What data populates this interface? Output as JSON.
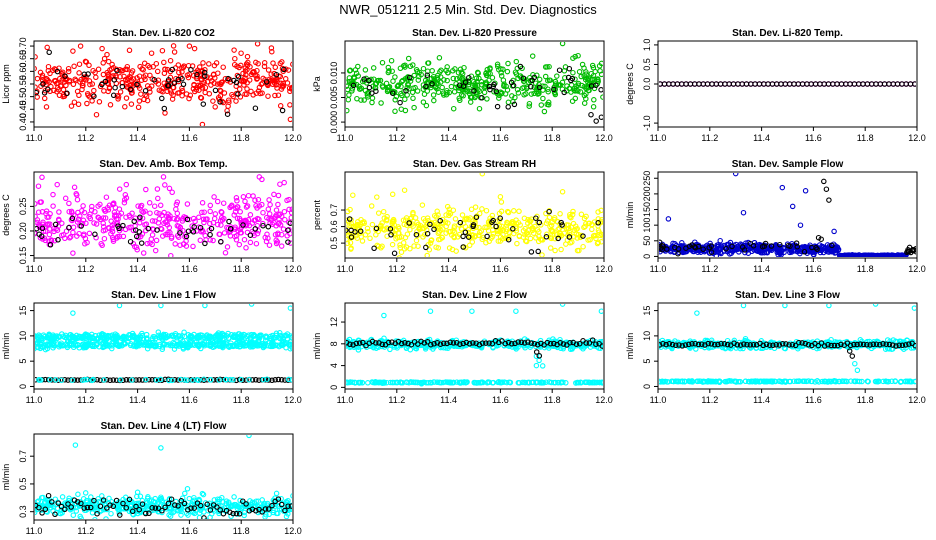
{
  "figure": {
    "title": "NWR_051211  2.5 Min. Std. Dev. Diagnostics"
  },
  "chart_data": [
    {
      "type": "scatter",
      "title": "Stan. Dev. Li-820 CO2",
      "xlabel": "",
      "ylabel": "Licor ppm",
      "xlim": [
        11.0,
        12.0
      ],
      "ylim": [
        0.38,
        0.72
      ],
      "xticks": [
        "11.0",
        "11.2",
        "11.4",
        "11.6",
        "11.8",
        "12.0"
      ],
      "yticks": [
        "0.40",
        "0.45",
        "0.50",
        "0.55",
        "0.60",
        "0.65",
        "0.70"
      ],
      "series": [
        {
          "name": "main",
          "color": "#ff0000",
          "n": 450,
          "center": 0.56,
          "spread": 0.05,
          "outliers": [
            [
              11.18,
              0.7
            ],
            [
              11.6,
              0.7
            ],
            [
              11.62,
              0.69
            ],
            [
              11.65,
              0.39
            ],
            [
              11.99,
              0.41
            ],
            [
              11.15,
              0.68
            ]
          ]
        },
        {
          "name": "highlight",
          "color": "#000000",
          "n": 50,
          "center": 0.55,
          "spread": 0.05,
          "outliers": []
        }
      ]
    },
    {
      "type": "scatter",
      "title": "Stan. Dev. Li-820 Pressure",
      "xlabel": "",
      "ylabel": "kPa",
      "xlim": [
        11.0,
        12.0
      ],
      "ylim": [
        -0.001,
        0.0165
      ],
      "xticks": [
        "11.0",
        "11.2",
        "11.4",
        "11.6",
        "11.8",
        "12.0"
      ],
      "yticks": [
        "0.000",
        "0.005",
        "0.010"
      ],
      "series": [
        {
          "name": "main",
          "color": "#00bb00",
          "n": 450,
          "center": 0.0075,
          "spread": 0.002,
          "outliers": [
            [
              11.18,
              0.0125
            ],
            [
              11.32,
              0.012
            ],
            [
              11.9,
              0.0135
            ],
            [
              11.88,
              0.013
            ],
            [
              11.84,
              0.016
            ],
            [
              11.56,
              0.011
            ]
          ]
        },
        {
          "name": "highlight",
          "color": "#000000",
          "n": 45,
          "center": 0.0075,
          "spread": 0.0018,
          "outliers": [
            [
              11.97,
              0.0002
            ],
            [
              11.95,
              0.0015
            ],
            [
              11.99,
              0.001
            ]
          ]
        }
      ]
    },
    {
      "type": "scatter",
      "title": "Stan. Dev. Li-820 Temp.",
      "xlabel": "",
      "ylabel": "degrees C",
      "xlim": [
        11.0,
        12.0
      ],
      "ylim": [
        -1.1,
        1.1
      ],
      "xticks": [
        "11.0",
        "11.2",
        "11.4",
        "11.6",
        "11.8",
        "12.0"
      ],
      "yticks": [
        "-1.0",
        "0.0",
        "0.5",
        "1.0"
      ],
      "series": [
        {
          "name": "main",
          "color": "#ff00ff",
          "n": 60,
          "center": 0.0,
          "spread": 0.0,
          "outliers": [],
          "regular": true
        },
        {
          "name": "highlight",
          "color": "#000000",
          "n": 60,
          "center": 0.0,
          "spread": 0.0,
          "outliers": [],
          "regular": true
        }
      ]
    },
    {
      "type": "scatter",
      "title": "Stan. Dev. Amb. Box Temp.",
      "xlabel": "",
      "ylabel": "degrees C",
      "xlim": [
        11.0,
        12.0
      ],
      "ylim": [
        0.145,
        0.32
      ],
      "xticks": [
        "11.0",
        "11.2",
        "11.4",
        "11.6",
        "11.8",
        "12.0"
      ],
      "yticks": [
        "0.15",
        "0.20",
        "0.25"
      ],
      "series": [
        {
          "name": "main",
          "color": "#ff00ff",
          "n": 450,
          "center": 0.22,
          "spread": 0.03,
          "outliers": [
            [
              11.5,
              0.31
            ],
            [
              11.87,
              0.31
            ],
            [
              11.88,
              0.305
            ],
            [
              11.47,
              0.16
            ],
            [
              11.15,
              0.155
            ]
          ]
        },
        {
          "name": "highlight",
          "color": "#000000",
          "n": 45,
          "center": 0.2,
          "spread": 0.015,
          "outliers": []
        }
      ]
    },
    {
      "type": "scatter",
      "title": "Stan. Dev. Gas Stream RH",
      "xlabel": "",
      "ylabel": "percent",
      "xlim": [
        11.0,
        12.0
      ],
      "ylim": [
        0.41,
        0.93
      ],
      "xticks": [
        "11.0",
        "11.2",
        "11.4",
        "11.6",
        "11.8",
        "12.0"
      ],
      "yticks": [
        "0.5",
        "0.6",
        "0.7"
      ],
      "series": [
        {
          "name": "main",
          "color": "#ffff00",
          "n": 450,
          "center": 0.58,
          "spread": 0.06,
          "outliers": [
            [
              11.53,
              0.92
            ],
            [
              11.23,
              0.82
            ],
            [
              11.03,
              0.79
            ],
            [
              11.84,
              0.81
            ],
            [
              11.6,
              0.78
            ]
          ]
        },
        {
          "name": "highlight",
          "color": "#000000",
          "n": 45,
          "center": 0.57,
          "spread": 0.06,
          "outliers": []
        }
      ]
    },
    {
      "type": "scatter",
      "title": "Stan. Dev. Sample Flow",
      "xlabel": "",
      "ylabel": "ml/min",
      "xlim": [
        11.0,
        12.0
      ],
      "ylim": [
        -5,
        270
      ],
      "xticks": [
        "11.0",
        "11.2",
        "11.4",
        "11.6",
        "11.8",
        "12.0"
      ],
      "yticks": [
        "0",
        "50",
        "100",
        "150",
        "200",
        "250"
      ],
      "series": [
        {
          "name": "main",
          "color": "#0000cc",
          "n": 450,
          "center": 25,
          "spread": 8,
          "xmax": 11.7,
          "outliers": [
            [
              11.3,
              265
            ],
            [
              11.48,
              220
            ],
            [
              11.57,
              210
            ],
            [
              11.04,
              120
            ],
            [
              11.52,
              160
            ],
            [
              11.33,
              140
            ],
            [
              11.68,
              80
            ],
            [
              11.55,
              100
            ]
          ]
        },
        {
          "name": "tail",
          "color": "#0000cc",
          "n": 80,
          "center": 3,
          "spread": 1,
          "xmin": 11.7,
          "xmax": 11.96,
          "outliers": [],
          "regular": true
        },
        {
          "name": "highlight",
          "color": "#000000",
          "n": 40,
          "center": 30,
          "spread": 10,
          "xmax": 11.7,
          "outliers": [
            [
              11.64,
              240
            ],
            [
              11.65,
              215
            ],
            [
              11.66,
              180
            ],
            [
              11.62,
              60
            ],
            [
              11.63,
              55
            ]
          ]
        },
        {
          "name": "tail2",
          "color": "#000000",
          "n": 12,
          "center": 18,
          "spread": 4,
          "xmin": 11.96,
          "xmax": 12.0,
          "outliers": []
        }
      ]
    },
    {
      "type": "scatter",
      "title": "Stan. Dev. Line 1 Flow",
      "xlabel": "",
      "ylabel": "ml/min",
      "xlim": [
        11.0,
        12.0
      ],
      "ylim": [
        -0.5,
        16.5
      ],
      "xticks": [
        "11.0",
        "11.2",
        "11.4",
        "11.6",
        "11.8",
        "12.0"
      ],
      "yticks": [
        "0",
        "5",
        "10",
        "15"
      ],
      "series": [
        {
          "name": "band-upper",
          "color": "#00ffff",
          "n": 350,
          "center": 9.8,
          "spread": 0.3,
          "outliers": [
            [
              11.15,
              14.5
            ],
            [
              11.33,
              16
            ],
            [
              11.49,
              16
            ],
            [
              11.66,
              16
            ],
            [
              11.84,
              16.3
            ],
            [
              11.99,
              15.5
            ]
          ]
        },
        {
          "name": "band-lower",
          "color": "#00ffff",
          "n": 350,
          "center": 8.2,
          "spread": 0.3,
          "outliers": []
        },
        {
          "name": "baseline",
          "color": "#000000",
          "n": 80,
          "center": 1.3,
          "spread": 0.05,
          "outliers": [],
          "regular": true
        },
        {
          "name": "baseline-cyan",
          "color": "#00ffff",
          "n": 40,
          "center": 1.3,
          "spread": 0.05,
          "outliers": []
        }
      ]
    },
    {
      "type": "scatter",
      "title": "Stan. Dev. Line 2 Flow",
      "xlabel": "",
      "ylabel": "ml/min",
      "xlim": [
        11.0,
        12.0
      ],
      "ylim": [
        -0.3,
        15.5
      ],
      "xticks": [
        "11.0",
        "11.2",
        "11.4",
        "11.6",
        "11.8",
        "12.0"
      ],
      "yticks": [
        "0",
        "4",
        "8",
        "12"
      ],
      "series": [
        {
          "name": "band",
          "color": "#00ffff",
          "n": 400,
          "center": 7.9,
          "spread": 0.4,
          "outliers": [
            [
              11.15,
              13.2
            ],
            [
              11.33,
              14
            ],
            [
              11.49,
              14
            ],
            [
              11.66,
              14
            ],
            [
              11.84,
              15.3
            ],
            [
              11.99,
              14
            ]
          ]
        },
        {
          "name": "dip",
          "color": "#00ffff",
          "n": 6,
          "center": 5.0,
          "spread": 1.2,
          "xmin": 11.73,
          "xmax": 11.77,
          "outliers": []
        },
        {
          "name": "highlight",
          "color": "#000000",
          "n": 80,
          "center": 8.1,
          "spread": 0.2,
          "outliers": [
            [
              11.74,
              6.5
            ],
            [
              11.75,
              5.8
            ]
          ],
          "regular": true
        },
        {
          "name": "baseline",
          "color": "#00ffff",
          "n": 200,
          "center": 0.9,
          "spread": 0.05,
          "outliers": []
        }
      ]
    },
    {
      "type": "scatter",
      "title": "Stan. Dev. Line 3 Flow",
      "xlabel": "",
      "ylabel": "ml/min",
      "xlim": [
        11.0,
        12.0
      ],
      "ylim": [
        -0.5,
        16.5
      ],
      "xticks": [
        "11.0",
        "11.2",
        "11.4",
        "11.6",
        "11.8",
        "12.0"
      ],
      "yticks": [
        "0",
        "5",
        "10",
        "15"
      ],
      "series": [
        {
          "name": "band",
          "color": "#00ffff",
          "n": 400,
          "center": 8.3,
          "spread": 0.4,
          "outliers": [
            [
              11.15,
              14.5
            ],
            [
              11.33,
              16
            ],
            [
              11.49,
              16
            ],
            [
              11.66,
              16
            ],
            [
              11.84,
              16.3
            ],
            [
              11.99,
              15.5
            ],
            [
              11.77,
              3.2
            ],
            [
              11.76,
              4.5
            ]
          ]
        },
        {
          "name": "highlight",
          "color": "#000000",
          "n": 80,
          "center": 8.3,
          "spread": 0.15,
          "outliers": [
            [
              11.75,
              6.0
            ],
            [
              11.74,
              7.0
            ]
          ],
          "regular": true
        },
        {
          "name": "baseline",
          "color": "#00ffff",
          "n": 200,
          "center": 1.0,
          "spread": 0.05,
          "outliers": []
        }
      ]
    },
    {
      "type": "scatter",
      "title": "Stan. Dev. Line 4 (LT) Flow",
      "xlabel": "",
      "ylabel": "ml/min",
      "xlim": [
        11.0,
        12.0
      ],
      "ylim": [
        0.24,
        0.86
      ],
      "xticks": [
        "11.0",
        "11.2",
        "11.4",
        "11.6",
        "11.8",
        "12.0"
      ],
      "yticks": [
        "0.3",
        "0.5",
        "0.7"
      ],
      "series": [
        {
          "name": "main",
          "color": "#00ffff",
          "n": 450,
          "center": 0.34,
          "spread": 0.035,
          "outliers": [
            [
              11.16,
              0.78
            ],
            [
              11.49,
              0.76
            ],
            [
              11.83,
              0.85
            ],
            [
              11.4,
              0.44
            ],
            [
              11.65,
              0.43
            ]
          ]
        },
        {
          "name": "highlight",
          "color": "#000000",
          "n": 80,
          "center": 0.34,
          "spread": 0.03,
          "outliers": [],
          "regular": true
        }
      ]
    }
  ]
}
